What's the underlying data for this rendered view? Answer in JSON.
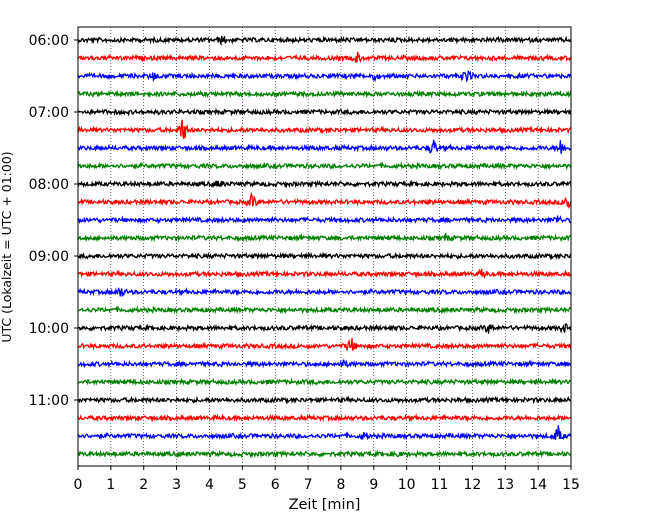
{
  "chart_data": {
    "type": "line",
    "title": "",
    "xlabel": "Zeit  [min]",
    "ylabel": "UTC (Lokalzeit = UTC + 01:00)",
    "xlim": [
      0,
      15
    ],
    "x_ticks": [
      "0",
      "1",
      "2",
      "3",
      "4",
      "5",
      "6",
      "7",
      "8",
      "9",
      "10",
      "11",
      "12",
      "13",
      "14",
      "15"
    ],
    "y_tick_labels": [
      "06:00",
      "07:00",
      "08:00",
      "09:00",
      "10:00",
      "11:00"
    ],
    "rows_per_label": 4,
    "grid": "vertical-dotted",
    "colors": [
      "#000000",
      "#ff0000",
      "#0000ff",
      "#008000"
    ],
    "series": [
      {
        "start": "06:00",
        "events": [
          {
            "t": 4.4,
            "amp": 0.25
          }
        ]
      },
      {
        "start": "06:15",
        "events": [
          {
            "t": 8.5,
            "amp": 0.3
          }
        ]
      },
      {
        "start": "06:30",
        "events": [
          {
            "t": 2.3,
            "amp": 0.2
          },
          {
            "t": 9.0,
            "amp": 0.2
          },
          {
            "t": 11.8,
            "amp": 0.5
          }
        ]
      },
      {
        "start": "06:45",
        "events": []
      },
      {
        "start": "07:00",
        "events": []
      },
      {
        "start": "07:15",
        "events": [
          {
            "t": 3.2,
            "amp": 0.9
          }
        ]
      },
      {
        "start": "07:30",
        "events": [
          {
            "t": 10.8,
            "amp": 0.6
          },
          {
            "t": 14.7,
            "amp": 0.5
          }
        ]
      },
      {
        "start": "07:45",
        "events": []
      },
      {
        "start": "08:00",
        "events": [
          {
            "t": 4.3,
            "amp": 0.2
          }
        ]
      },
      {
        "start": "08:15",
        "events": [
          {
            "t": 5.3,
            "amp": 0.5
          },
          {
            "t": 14.9,
            "amp": 0.6
          }
        ]
      },
      {
        "start": "08:30",
        "events": [
          {
            "t": 14.6,
            "amp": 0.25
          }
        ]
      },
      {
        "start": "08:45",
        "events": [
          {
            "t": 11.2,
            "amp": 0.2
          }
        ]
      },
      {
        "start": "09:00",
        "events": []
      },
      {
        "start": "09:15",
        "events": [
          {
            "t": 12.3,
            "amp": 0.25
          }
        ]
      },
      {
        "start": "09:30",
        "events": [
          {
            "t": 1.3,
            "amp": 0.35
          }
        ]
      },
      {
        "start": "09:45",
        "events": []
      },
      {
        "start": "10:00",
        "events": [
          {
            "t": 12.5,
            "amp": 0.3
          },
          {
            "t": 14.8,
            "amp": 0.25
          }
        ]
      },
      {
        "start": "10:15",
        "events": [
          {
            "t": 8.3,
            "amp": 0.55
          }
        ]
      },
      {
        "start": "10:30",
        "events": [
          {
            "t": 8.1,
            "amp": 0.2
          }
        ]
      },
      {
        "start": "10:45",
        "events": []
      },
      {
        "start": "11:00",
        "events": []
      },
      {
        "start": "11:15",
        "events": []
      },
      {
        "start": "11:30",
        "events": [
          {
            "t": 8.7,
            "amp": 0.2
          },
          {
            "t": 14.6,
            "amp": 0.6
          }
        ]
      },
      {
        "start": "11:45",
        "events": [
          {
            "t": 9.7,
            "amp": 0.15
          }
        ]
      }
    ]
  }
}
